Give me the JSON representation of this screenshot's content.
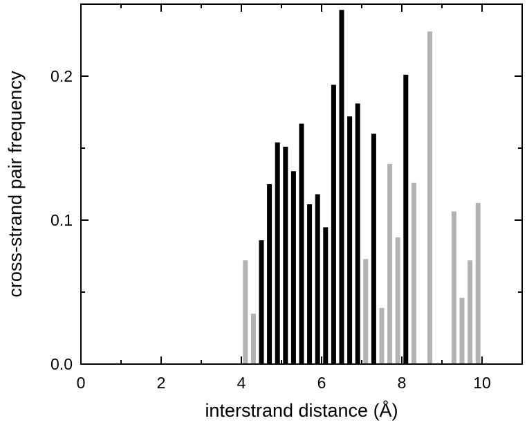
{
  "chart_data": {
    "type": "bar",
    "title": "",
    "xlabel": "interstrand distance (Å)",
    "ylabel": "cross-strand pair frequency",
    "xlim": [
      0,
      11
    ],
    "ylim": [
      0,
      0.25
    ],
    "x_ticks": [
      0,
      2,
      4,
      6,
      8,
      10
    ],
    "x_tick_labels": [
      "0",
      "2",
      "4",
      "6",
      "8",
      "10"
    ],
    "y_ticks": [
      0.0,
      0.1,
      0.2
    ],
    "y_tick_labels": [
      "0.0",
      "0.1",
      "0.2"
    ],
    "grid": false,
    "colors": {
      "black_bars": "#000000",
      "gray_bars": "#b3b3b3"
    },
    "series": [
      {
        "color": "#000000",
        "x": [
          4.5,
          4.7,
          4.9,
          5.1,
          5.3,
          5.5,
          5.7,
          5.9,
          6.1,
          6.3,
          6.5,
          6.7,
          6.9,
          7.3,
          8.1
        ],
        "values": [
          0.086,
          0.125,
          0.154,
          0.151,
          0.134,
          0.167,
          0.111,
          0.118,
          0.095,
          0.194,
          0.246,
          0.172,
          0.181,
          0.16,
          0.201
        ]
      },
      {
        "color": "#b3b3b3",
        "x": [
          4.1,
          4.3,
          7.1,
          7.5,
          7.7,
          7.9,
          8.3,
          8.7,
          9.3,
          9.5,
          9.7,
          9.9
        ],
        "values": [
          0.072,
          0.035,
          0.073,
          0.039,
          0.139,
          0.088,
          0.126,
          0.231,
          0.106,
          0.046,
          0.072,
          0.112
        ]
      }
    ]
  }
}
